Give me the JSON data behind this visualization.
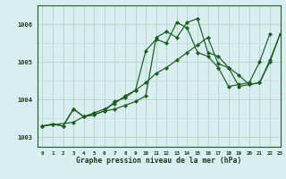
{
  "title": "Graphe pression niveau de la mer (hPa)",
  "bg_color": "#d8eef0",
  "grid_color": "#b8d8d0",
  "line_color": "#1a5c1a",
  "xlim": [
    -0.5,
    23
  ],
  "ylim": [
    1002.75,
    1006.5
  ],
  "yticks": [
    1003,
    1004,
    1005,
    1006
  ],
  "xticks": [
    0,
    1,
    2,
    3,
    4,
    5,
    6,
    7,
    8,
    9,
    10,
    11,
    12,
    13,
    14,
    15,
    16,
    17,
    18,
    19,
    20,
    21,
    22,
    23
  ],
  "series": [
    {
      "x": [
        0,
        1,
        2,
        3,
        4,
        5,
        6,
        7,
        8,
        9,
        10,
        11,
        12,
        13,
        14,
        15,
        16,
        17,
        18,
        19,
        20,
        21,
        22,
        23
      ],
      "y": [
        1003.3,
        1003.35,
        1003.3,
        1003.75,
        1003.55,
        1003.6,
        1003.7,
        1003.75,
        1003.85,
        1003.95,
        1004.1,
        1005.65,
        1005.8,
        1005.65,
        1006.05,
        1006.15,
        1005.25,
        1005.15,
        1004.85,
        1004.35,
        1004.4,
        1004.45,
        1005.0,
        1005.75
      ]
    },
    {
      "x": [
        0,
        1,
        2,
        3,
        4,
        5,
        6,
        7,
        8,
        9,
        10,
        11,
        12,
        13,
        14,
        15,
        16,
        17,
        18,
        19,
        20,
        21,
        22
      ],
      "y": [
        1003.3,
        1003.35,
        1003.3,
        1003.75,
        1003.55,
        1003.6,
        1003.7,
        1003.95,
        1004.05,
        1004.25,
        1005.3,
        1005.6,
        1005.5,
        1006.05,
        1005.9,
        1005.25,
        1005.15,
        1004.85,
        1004.35,
        1004.4,
        1004.45,
        1005.0,
        1005.75
      ]
    },
    {
      "x": [
        0,
        3,
        4,
        5,
        6,
        7,
        8,
        9,
        10,
        11,
        12,
        13,
        14,
        15,
        16,
        17,
        18,
        19,
        20,
        21,
        22,
        23
      ],
      "y": [
        1003.3,
        1003.4,
        1003.55,
        1003.65,
        1003.75,
        1003.9,
        1004.1,
        1004.25,
        1004.45,
        1004.7,
        1004.85,
        1005.05,
        1005.25,
        1005.45,
        1005.65,
        1004.95,
        1004.85,
        1004.65,
        1004.4,
        1004.45,
        1005.05,
        1005.75
      ]
    }
  ]
}
